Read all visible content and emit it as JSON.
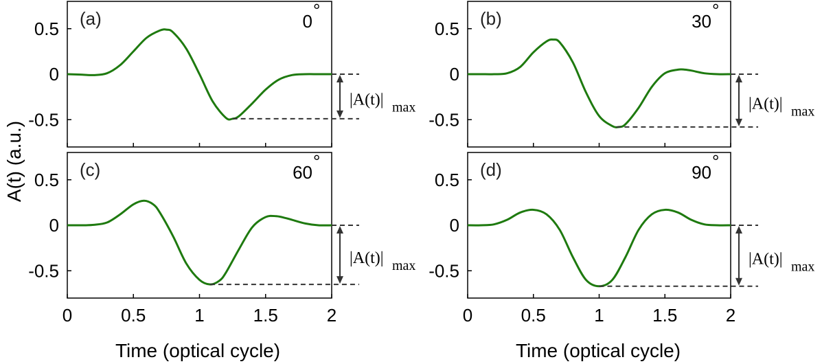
{
  "ylabel": "A(t) (a.u.)",
  "xlabel": "Time (optical cycle)",
  "chart_data": [
    {
      "type": "line",
      "panel_label": "(a)",
      "angle_label": "0",
      "degree_symbol": "°",
      "xlim": [
        0,
        2
      ],
      "ylim": [
        -0.8,
        0.8
      ],
      "xticks": [
        "0",
        "0.5",
        "1",
        "1.5",
        "2"
      ],
      "yticks": [
        "0.5",
        "0",
        "-0.5"
      ],
      "ytick_values": [
        0.5,
        0,
        -0.5
      ],
      "line_color": "#1e7a0f",
      "x": [
        0,
        0.1,
        0.2,
        0.3,
        0.4,
        0.5,
        0.6,
        0.7,
        0.75,
        0.8,
        0.9,
        1.0,
        1.1,
        1.2,
        1.25,
        1.3,
        1.4,
        1.5,
        1.6,
        1.7,
        1.8,
        1.9,
        2.0
      ],
      "y": [
        0,
        -0.005,
        -0.01,
        0.01,
        0.1,
        0.25,
        0.4,
        0.48,
        0.49,
        0.46,
        0.28,
        0.0,
        -0.3,
        -0.48,
        -0.49,
        -0.46,
        -0.32,
        -0.17,
        -0.06,
        -0.01,
        0,
        0,
        0
      ],
      "annotation": {
        "label": "|A(t)|",
        "subscript": "max",
        "top": 0,
        "bottom": -0.49,
        "x_start": 1.25
      }
    },
    {
      "type": "line",
      "panel_label": "(b)",
      "angle_label": "30",
      "degree_symbol": "°",
      "xlim": [
        0,
        2
      ],
      "ylim": [
        -0.8,
        0.8
      ],
      "xticks": [
        "0",
        "0.5",
        "1",
        "1.5",
        "2"
      ],
      "yticks": [
        "0.5",
        "0",
        "-0.5"
      ],
      "ytick_values": [
        0.5,
        0,
        -0.5
      ],
      "line_color": "#1e7a0f",
      "x": [
        0,
        0.1,
        0.2,
        0.3,
        0.4,
        0.5,
        0.6,
        0.65,
        0.7,
        0.8,
        0.9,
        1.0,
        1.1,
        1.15,
        1.2,
        1.3,
        1.4,
        1.5,
        1.6,
        1.65,
        1.7,
        1.8,
        1.9,
        2.0
      ],
      "y": [
        0,
        0,
        0,
        0.01,
        0.08,
        0.24,
        0.36,
        0.38,
        0.35,
        0.13,
        -0.2,
        -0.46,
        -0.57,
        -0.58,
        -0.55,
        -0.37,
        -0.14,
        0.01,
        0.05,
        0.05,
        0.04,
        0.01,
        0,
        0
      ],
      "annotation": {
        "label": "|A(t)|",
        "subscript": "max",
        "top": 0,
        "bottom": -0.58,
        "x_start": 1.13
      }
    },
    {
      "type": "line",
      "panel_label": "(c)",
      "angle_label": "60",
      "degree_symbol": "°",
      "xlim": [
        0,
        2
      ],
      "ylim": [
        -0.8,
        0.8
      ],
      "xticks": [
        "0",
        "0.5",
        "1",
        "1.5",
        "2"
      ],
      "yticks": [
        "0.5",
        "0",
        "-0.5"
      ],
      "ytick_values": [
        0.5,
        0,
        -0.5
      ],
      "line_color": "#1e7a0f",
      "x": [
        0,
        0.1,
        0.2,
        0.3,
        0.4,
        0.5,
        0.58,
        0.65,
        0.7,
        0.8,
        0.9,
        1.0,
        1.08,
        1.15,
        1.2,
        1.3,
        1.4,
        1.5,
        1.58,
        1.65,
        1.7,
        1.8,
        1.9,
        2.0
      ],
      "y": [
        0,
        0,
        0.005,
        0.03,
        0.12,
        0.23,
        0.27,
        0.23,
        0.14,
        -0.12,
        -0.42,
        -0.6,
        -0.65,
        -0.61,
        -0.52,
        -0.26,
        -0.02,
        0.09,
        0.1,
        0.08,
        0.06,
        0.02,
        0,
        0
      ],
      "annotation": {
        "label": "|A(t)|",
        "subscript": "max",
        "top": 0,
        "bottom": -0.65,
        "x_start": 1.08
      }
    },
    {
      "type": "line",
      "panel_label": "(d)",
      "angle_label": "90",
      "degree_symbol": "°",
      "xlim": [
        0,
        2
      ],
      "ylim": [
        -0.8,
        0.8
      ],
      "xticks": [
        "0",
        "0.5",
        "1",
        "1.5",
        "2"
      ],
      "yticks": [
        "0.5",
        "0",
        "-0.5"
      ],
      "ytick_values": [
        0.5,
        0,
        -0.5
      ],
      "line_color": "#1e7a0f",
      "x": [
        0,
        0.1,
        0.2,
        0.3,
        0.4,
        0.5,
        0.6,
        0.7,
        0.8,
        0.9,
        1.0,
        1.1,
        1.2,
        1.3,
        1.4,
        1.5,
        1.6,
        1.7,
        1.8,
        1.9,
        2.0
      ],
      "y": [
        0,
        0,
        0.01,
        0.06,
        0.14,
        0.17,
        0.12,
        -0.05,
        -0.35,
        -0.6,
        -0.67,
        -0.6,
        -0.35,
        -0.05,
        0.12,
        0.17,
        0.14,
        0.06,
        0.01,
        0,
        0
      ],
      "annotation": {
        "label": "|A(t)|",
        "subscript": "max",
        "top": 0,
        "bottom": -0.67,
        "x_start": 1.0
      }
    }
  ]
}
